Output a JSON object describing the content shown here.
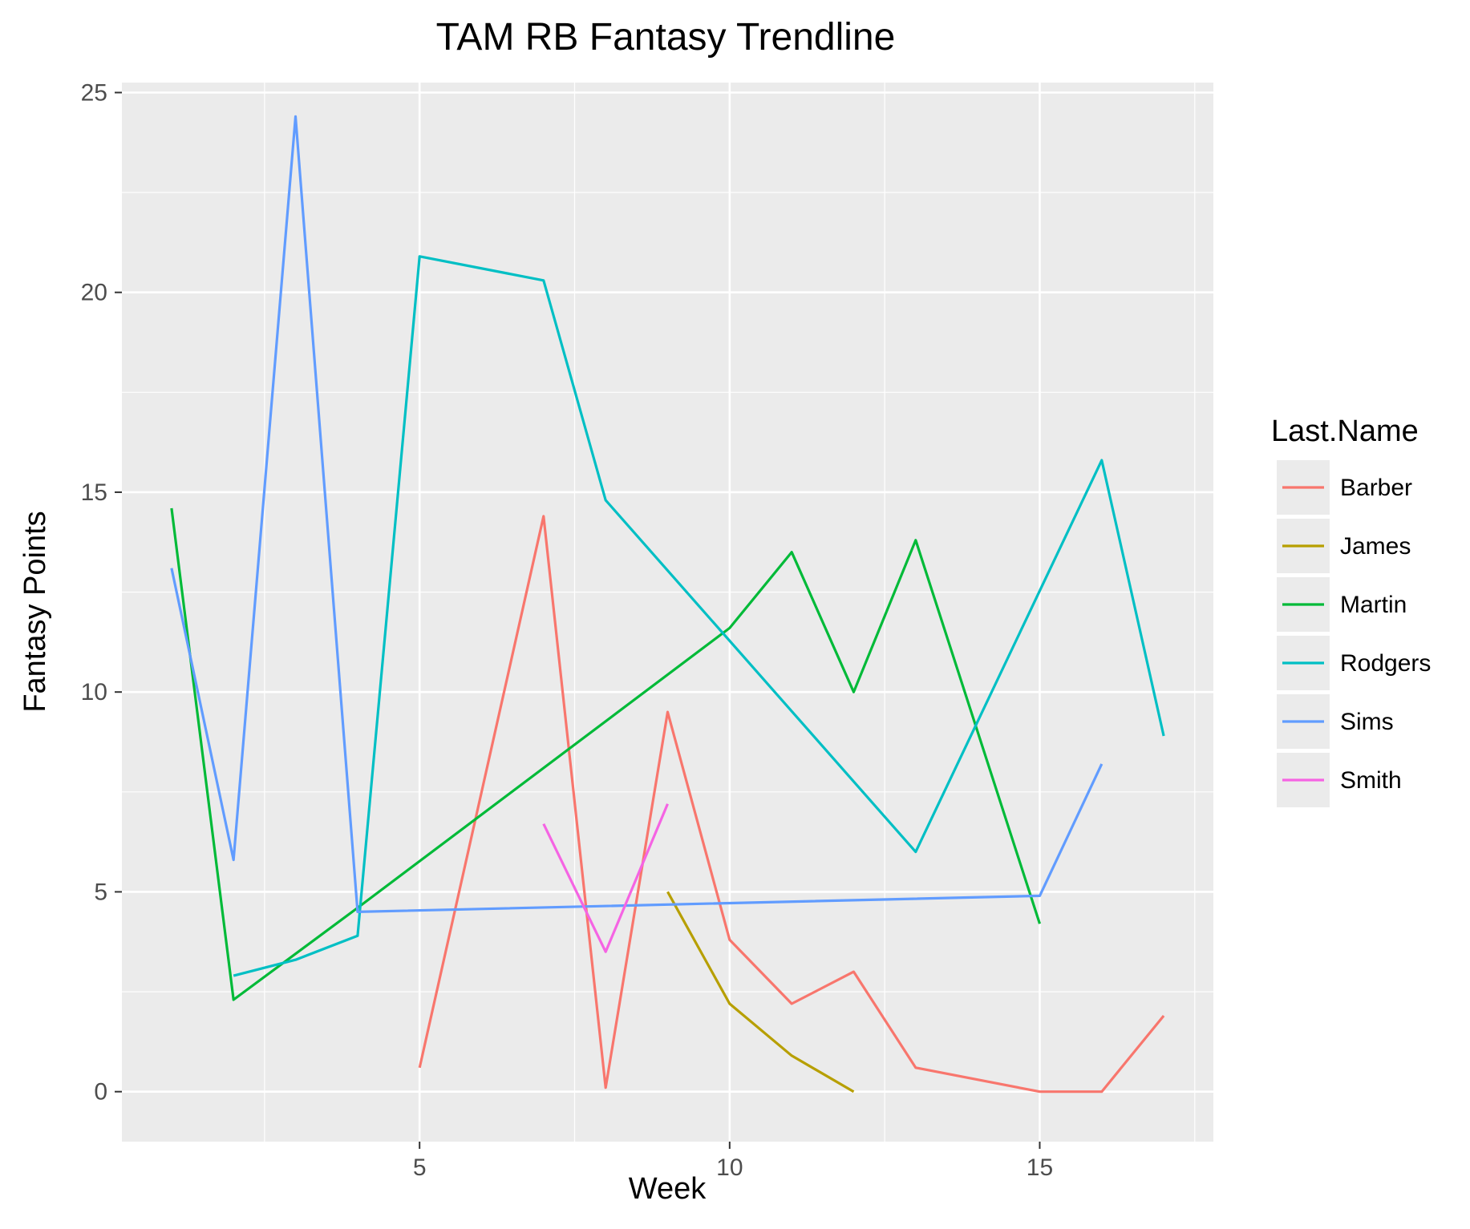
{
  "chart_data": {
    "type": "line",
    "title": "TAM RB Fantasy Trendline",
    "xlabel": "Week",
    "ylabel": "Fantasy Points",
    "xlim": [
      0.2,
      17.8
    ],
    "ylim": [
      -1.25,
      25.25
    ],
    "x_major_ticks": [
      5,
      10,
      15
    ],
    "x_minor_ticks": [
      2.5,
      7.5,
      12.5,
      17.5
    ],
    "y_major_ticks": [
      0,
      5,
      10,
      15,
      20,
      25
    ],
    "y_minor_ticks": [
      2.5,
      7.5,
      12.5,
      17.5,
      22.5
    ],
    "grid": true,
    "legend": {
      "title": "Last.Name",
      "position": "right"
    },
    "series": [
      {
        "name": "Barber",
        "color": "#F8766D",
        "x": [
          5,
          7,
          8,
          9,
          10,
          11,
          12,
          13,
          15,
          16,
          17
        ],
        "y": [
          0.6,
          14.4,
          0.1,
          9.5,
          3.8,
          2.2,
          3.0,
          0.6,
          0.0,
          0.0,
          1.9
        ]
      },
      {
        "name": "James",
        "color": "#B79F00",
        "x": [
          9,
          10,
          11,
          12
        ],
        "y": [
          5.0,
          2.2,
          0.9,
          0.0
        ]
      },
      {
        "name": "Martin",
        "color": "#00BA38",
        "x": [
          1,
          2,
          4,
          10,
          11,
          12,
          13,
          15
        ],
        "y": [
          14.6,
          2.3,
          4.6,
          11.6,
          13.5,
          10.0,
          13.8,
          4.2
        ]
      },
      {
        "name": "Rodgers",
        "color": "#00BFC4",
        "x": [
          2,
          3,
          4,
          5,
          7,
          8,
          13,
          16,
          17
        ],
        "y": [
          2.9,
          3.3,
          3.9,
          20.9,
          20.3,
          14.8,
          6.0,
          15.8,
          8.9
        ]
      },
      {
        "name": "Sims",
        "color": "#619CFF",
        "x": [
          1,
          2,
          3,
          4,
          15,
          16
        ],
        "y": [
          13.1,
          5.8,
          24.4,
          4.5,
          4.9,
          8.2
        ]
      },
      {
        "name": "Smith",
        "color": "#F564E3",
        "x": [
          7,
          8,
          9
        ],
        "y": [
          6.7,
          3.5,
          7.2
        ]
      }
    ]
  }
}
